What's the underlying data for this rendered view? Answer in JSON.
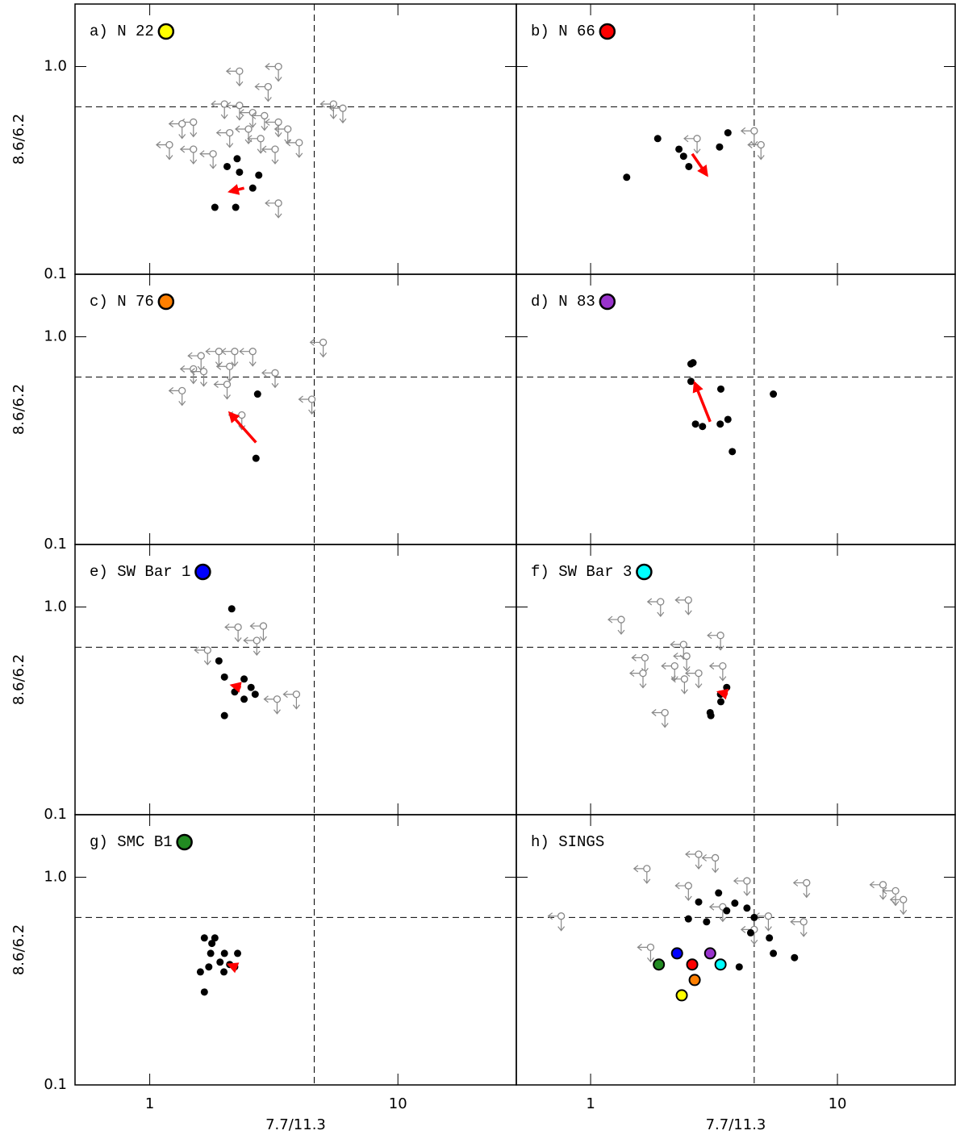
{
  "chart_data": [
    {
      "type": "scatter",
      "title": "a) N 22",
      "marker_color": "#ffff00",
      "log": true,
      "ylabel": "8.6/6.2",
      "xlim": [
        0.5,
        30
      ],
      "ylim": [
        0.1,
        2.0
      ],
      "xticks": [
        1,
        10
      ],
      "yticks": [
        0.1,
        {
          "value": 1,
          "label": "1.0"
        }
      ],
      "hline": 0.64,
      "vline": 4.6,
      "x": [
        1.83,
        2.22,
        2.25,
        2.6,
        2.75,
        2.3,
        2.05
      ],
      "y": [
        0.21,
        0.21,
        0.36,
        0.26,
        0.3,
        0.31,
        0.33
      ],
      "limits": {
        "x": [
          2.3,
          3.3,
          3.0,
          2.0,
          2.3,
          1.5,
          1.35,
          2.6,
          2.9,
          3.3,
          3.6,
          4.0,
          1.2,
          1.5,
          2.1,
          2.8,
          3.2,
          5.5,
          6.0,
          3.3,
          1.8,
          2.5
        ],
        "y": [
          0.95,
          1.0,
          0.8,
          0.66,
          0.65,
          0.54,
          0.53,
          0.6,
          0.58,
          0.54,
          0.5,
          0.43,
          0.42,
          0.4,
          0.48,
          0.45,
          0.4,
          0.66,
          0.63,
          0.22,
          0.38,
          0.5
        ]
      },
      "arrow": {
        "x": [
          2.4,
          2.1
        ],
        "y": [
          0.26,
          0.25
        ]
      }
    },
    {
      "type": "scatter",
      "title": "b) N 66",
      "marker_color": "#ff0000",
      "log": true,
      "xlim": [
        0.5,
        30
      ],
      "ylim": [
        0.1,
        2.0
      ],
      "xticks": [
        1,
        10
      ],
      "yticks": [
        0.1,
        1
      ],
      "hline": 0.64,
      "vline": 4.6,
      "x": [
        1.4,
        1.87,
        2.28,
        2.38,
        3.33,
        3.6,
        2.5
      ],
      "y": [
        0.293,
        0.45,
        0.4,
        0.37,
        0.41,
        0.48,
        0.33
      ],
      "limits": {
        "x": [
          2.7,
          4.6,
          4.9
        ],
        "y": [
          0.45,
          0.49,
          0.42
        ]
      },
      "arrow": {
        "x": [
          2.58,
          2.96
        ],
        "y": [
          0.38,
          0.3
        ]
      }
    },
    {
      "type": "scatter",
      "title": "c) N 76",
      "marker_color": "#ff7f00",
      "log": true,
      "ylabel": "8.6/6.2",
      "xlim": [
        0.5,
        30
      ],
      "ylim": [
        0.1,
        2.0
      ],
      "xticks": [
        1,
        10
      ],
      "yticks": [
        0.1,
        {
          "value": 1,
          "label": "1.0"
        }
      ],
      "hline": 0.64,
      "vline": 4.6,
      "x": [
        2.72,
        2.68
      ],
      "y": [
        0.53,
        0.26
      ],
      "limits": {
        "x": [
          1.35,
          1.61,
          1.9,
          2.2,
          2.6,
          1.5,
          2.1,
          3.2,
          5.0,
          4.5,
          2.05,
          2.35,
          1.65
        ],
        "y": [
          0.55,
          0.81,
          0.85,
          0.85,
          0.85,
          0.7,
          0.72,
          0.67,
          0.94,
          0.5,
          0.59,
          0.42,
          0.68
        ]
      },
      "arrow": {
        "x": [
          2.68,
          2.1
        ],
        "y": [
          0.31,
          0.43
        ]
      }
    },
    {
      "type": "scatter",
      "title": "d) N 83",
      "marker_color": "#9933cc",
      "log": true,
      "xlim": [
        0.5,
        30
      ],
      "ylim": [
        0.1,
        2.0
      ],
      "xticks": [
        1,
        10
      ],
      "yticks": [
        0.1,
        1
      ],
      "hline": 0.64,
      "vline": 4.6,
      "x": [
        2.55,
        2.6,
        2.55,
        2.66,
        2.84,
        3.35,
        3.37,
        3.6,
        3.75,
        5.5
      ],
      "y": [
        0.74,
        0.75,
        0.61,
        0.38,
        0.37,
        0.38,
        0.56,
        0.4,
        0.28,
        0.53
      ],
      "limits": {
        "x": [],
        "y": []
      },
      "arrow": {
        "x": [
          3.05,
          2.64
        ],
        "y": [
          0.39,
          0.6
        ]
      }
    },
    {
      "type": "scatter",
      "title": "e) SW Bar 1",
      "marker_color": "#0000ff",
      "log": true,
      "ylabel": "8.6/6.2",
      "xlim": [
        0.5,
        30
      ],
      "ylim": [
        0.1,
        2.0
      ],
      "xticks": [
        1,
        10
      ],
      "yticks": [
        0.1,
        {
          "value": 1,
          "label": "1.0"
        }
      ],
      "hline": 0.64,
      "vline": 4.6,
      "x": [
        2.14,
        1.9,
        2.0,
        2.2,
        2.4,
        2.56,
        2.66,
        2.4,
        2.0
      ],
      "y": [
        0.98,
        0.55,
        0.3,
        0.39,
        0.45,
        0.41,
        0.38,
        0.36,
        0.46
      ],
      "limits": {
        "x": [
          2.27,
          2.87,
          2.7,
          3.26,
          3.9,
          1.71
        ],
        "y": [
          0.8,
          0.81,
          0.69,
          0.36,
          0.38,
          0.62
        ]
      },
      "arrow": {
        "x": [
          2.33,
          2.14
        ],
        "y": [
          0.41,
          0.42
        ]
      }
    },
    {
      "type": "scatter",
      "title": "f) SW Bar 3",
      "marker_color": "#00ffff",
      "log": true,
      "xlim": [
        0.5,
        30
      ],
      "ylim": [
        0.1,
        2.0
      ],
      "xticks": [
        1,
        10
      ],
      "yticks": [
        0.1,
        1
      ],
      "hline": 0.64,
      "vline": 4.6,
      "x": [
        3.36,
        3.56,
        3.37,
        3.07,
        3.05
      ],
      "y": [
        0.38,
        0.41,
        0.35,
        0.3,
        0.31
      ],
      "limits": {
        "x": [
          1.92,
          2.49,
          1.33,
          2.38,
          3.36,
          1.66,
          2.45,
          2.19,
          1.63,
          2.4,
          3.43,
          2.0,
          2.74
        ],
        "y": [
          1.06,
          1.08,
          0.87,
          0.66,
          0.73,
          0.57,
          0.58,
          0.52,
          0.48,
          0.45,
          0.52,
          0.31,
          0.48
        ]
      },
      "arrow": {
        "x": [
          3.59,
          3.3
        ],
        "y": [
          0.38,
          0.39
        ]
      }
    },
    {
      "type": "scatter",
      "title": "g) SMC B1",
      "marker_color": "#228b22",
      "log": true,
      "ylabel": "8.6/6.2",
      "xlabel": "7.7/11.3",
      "xlim": [
        0.5,
        30
      ],
      "ylim": [
        0.1,
        2.0
      ],
      "xticks": [
        1,
        10
      ],
      "yticks": [
        0.1,
        {
          "value": 1,
          "label": "1.0"
        }
      ],
      "hline": 0.64,
      "vline": 4.6,
      "x": [
        1.66,
        1.83,
        1.78,
        1.76,
        2.0,
        2.26,
        1.73,
        1.92,
        1.6,
        1.99,
        2.2,
        1.66,
        2.1
      ],
      "y": [
        0.51,
        0.51,
        0.48,
        0.43,
        0.43,
        0.43,
        0.37,
        0.39,
        0.35,
        0.35,
        0.37,
        0.28,
        0.38
      ],
      "limits": {
        "x": [],
        "y": []
      },
      "arrow": {
        "x": [
          2.2,
          2.08
        ],
        "y": [
          0.37,
          0.38
        ]
      }
    },
    {
      "type": "scatter",
      "title": "h) SINGS",
      "log": true,
      "xlabel": "7.7/11.3",
      "xlim": [
        0.5,
        30
      ],
      "ylim": [
        0.1,
        2.0
      ],
      "xticks": [
        1,
        10
      ],
      "yticks": [
        0.1,
        1
      ],
      "hline": 0.64,
      "vline": 4.6,
      "x": [
        2.49,
        2.95,
        3.3,
        3.56,
        3.84,
        4.3,
        4.6,
        4.45,
        5.3,
        5.5,
        6.7,
        4.0,
        2.74
      ],
      "y": [
        0.63,
        0.61,
        0.84,
        0.69,
        0.75,
        0.71,
        0.64,
        0.54,
        0.51,
        0.43,
        0.41,
        0.37,
        0.76
      ],
      "limits": {
        "x": [
          0.76,
          1.69,
          2.74,
          3.2,
          1.75,
          2.49,
          4.3,
          7.5,
          15.3,
          17.2,
          18.5,
          7.3,
          5.25,
          4.6,
          3.43
        ],
        "y": [
          0.65,
          1.1,
          1.29,
          1.24,
          0.46,
          0.91,
          0.96,
          0.94,
          0.92,
          0.86,
          0.78,
          0.61,
          0.65,
          0.56,
          0.72
        ]
      },
      "highlight": {
        "x": [
          2.34,
          2.58,
          2.64,
          3.05,
          2.24,
          3.36,
          1.89
        ],
        "y": [
          0.27,
          0.38,
          0.32,
          0.43,
          0.43,
          0.38,
          0.38
        ],
        "colors": [
          "#ffff00",
          "#ff0000",
          "#ff7f00",
          "#9933cc",
          "#0000ff",
          "#00ffff",
          "#228b22"
        ]
      }
    }
  ]
}
